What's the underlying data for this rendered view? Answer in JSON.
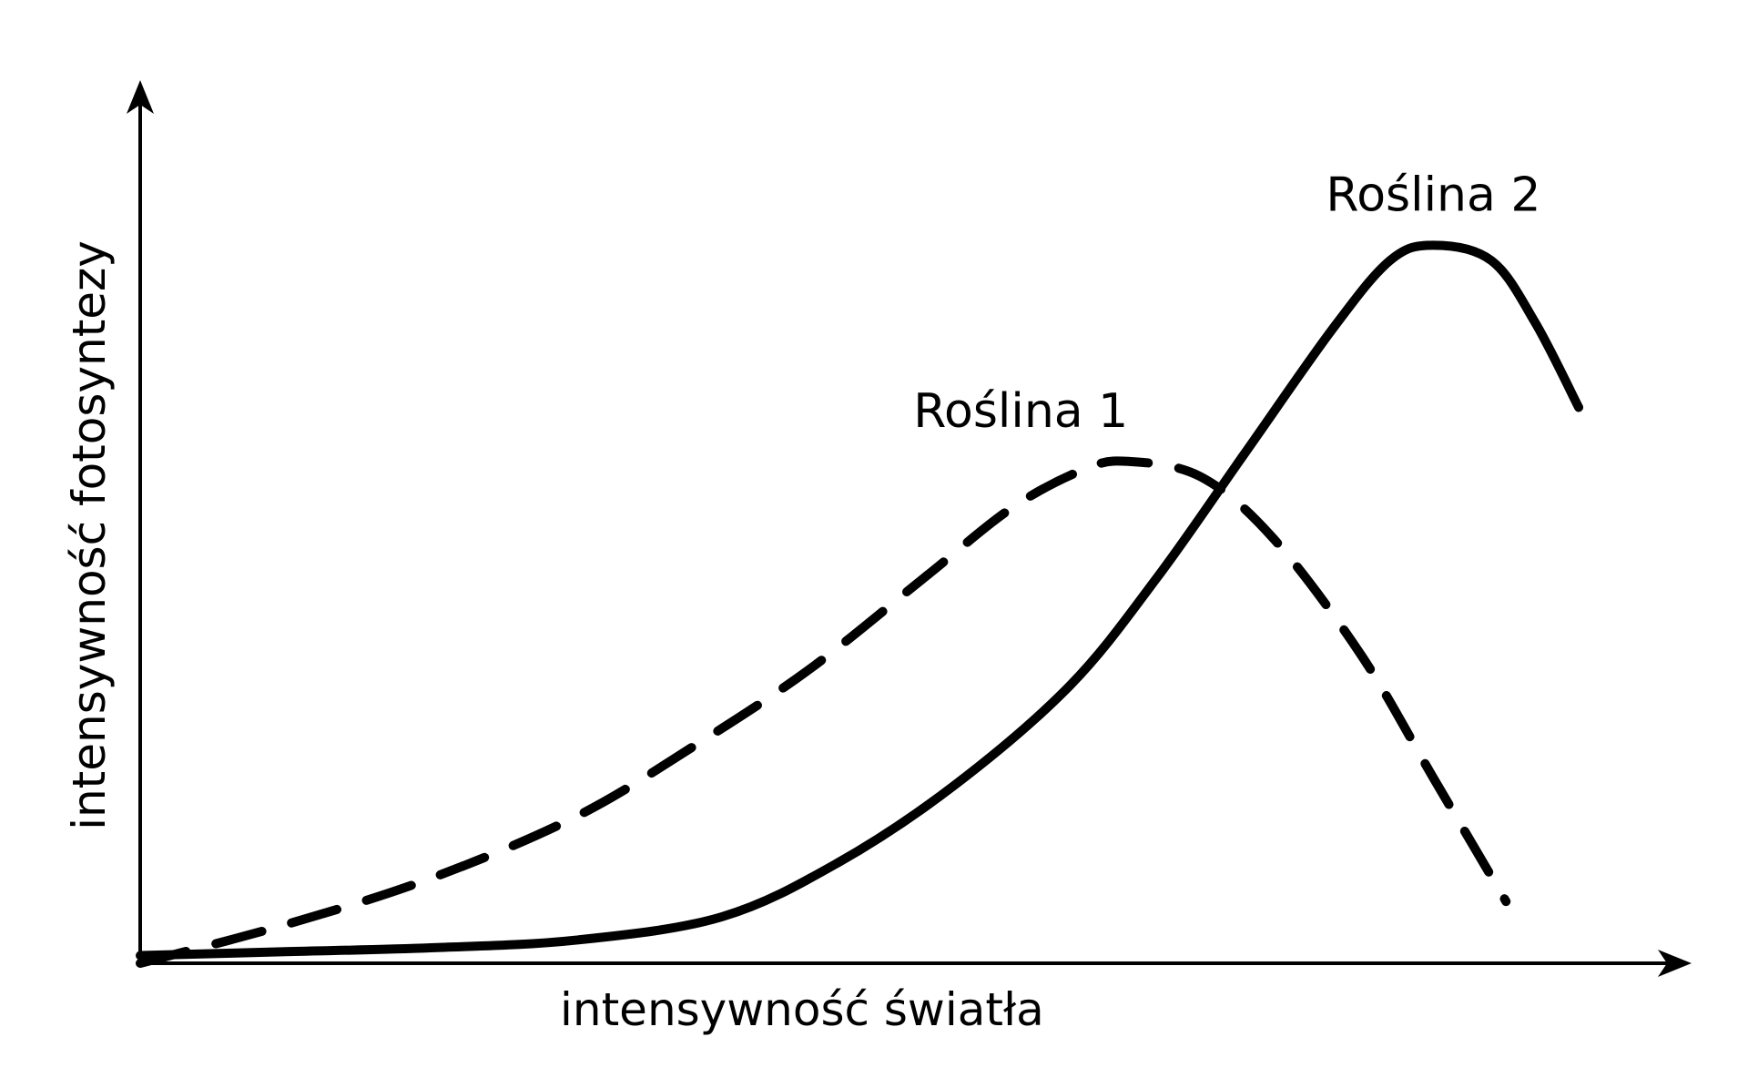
{
  "chart_data": {
    "type": "line",
    "title": "",
    "xlabel": "intensywność światła",
    "ylabel": "intensywność fotosyntezy",
    "x_ticks_shown": false,
    "y_ticks_shown": false,
    "grid": false,
    "legend": "none",
    "xlim": [
      0,
      100
    ],
    "ylim": [
      0,
      100
    ],
    "series": [
      {
        "name": "Roślina 1",
        "line_style": "dashed",
        "color": "#000000",
        "label_anchor_index": 9,
        "x": [
          0,
          10,
          20,
          30,
          38,
          46,
          54,
          60,
          65,
          68,
          73,
          78,
          84,
          89,
          94
        ],
        "y": [
          0,
          5,
          11,
          19,
          28,
          38,
          50,
          59,
          64,
          65,
          63,
          55,
          40,
          24,
          8
        ]
      },
      {
        "name": "Roślina 2",
        "line_style": "solid",
        "color": "#000000",
        "label_anchor_index": 12,
        "x": [
          0,
          10,
          20,
          30,
          40,
          48,
          56,
          64,
          70,
          76,
          82,
          86,
          89,
          93,
          96,
          99
        ],
        "y": [
          1,
          1.5,
          2,
          3,
          6,
          13,
          23,
          36,
          50,
          66,
          82,
          91,
          93,
          91,
          83,
          72
        ]
      }
    ]
  }
}
